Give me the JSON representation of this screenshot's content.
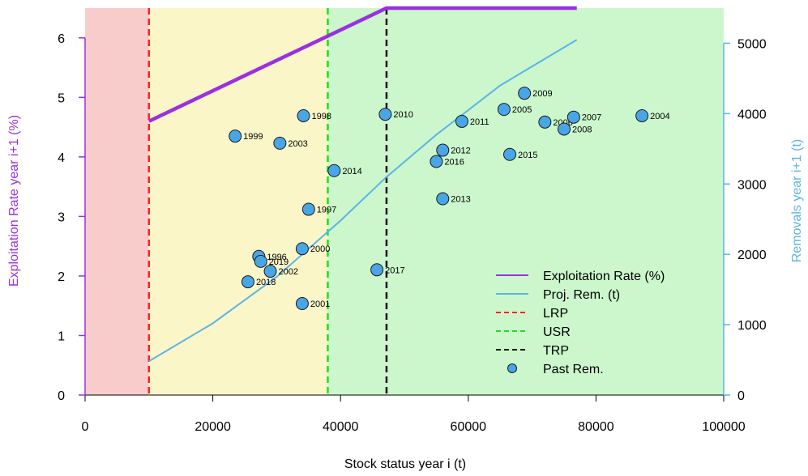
{
  "chart_data": {
    "type": "scatter",
    "xlabel": "Stock status year i (t)",
    "ylabel_left": "Exploitation Rate year i+1 (%)",
    "ylabel_right": "Removals year i+1 (t)",
    "xlim": [
      0,
      100000
    ],
    "ylim_left": [
      0,
      6.5
    ],
    "ylim_right": [
      0,
      5500
    ],
    "x_ticks": [
      "0",
      "20000",
      "40000",
      "60000",
      "80000",
      "100000"
    ],
    "y_left_ticks": [
      "0",
      "1",
      "2",
      "3",
      "4",
      "5",
      "6"
    ],
    "y_right_ticks": [
      "0",
      "1000",
      "2000",
      "3000",
      "4000",
      "5000"
    ],
    "zones": [
      {
        "from": 0,
        "to": 10000,
        "color": "#f9cccc"
      },
      {
        "from": 10000,
        "to": 38000,
        "color": "#fbf6c8"
      },
      {
        "from": 38000,
        "to": 100000,
        "color": "#ccf7cc"
      }
    ],
    "reference_lines": [
      {
        "name": "LRP",
        "x": 10000,
        "color": "#ff2020"
      },
      {
        "name": "USR",
        "x": 38000,
        "color": "#22dd22"
      },
      {
        "name": "TRP",
        "x": 47200,
        "color": "#111111"
      }
    ],
    "exploitation_rate": {
      "name": "Exploitation Rate (%)",
      "color": "#9b30e0",
      "x": [
        10000,
        47200,
        77000
      ],
      "y": [
        4.6,
        6.5,
        6.5
      ]
    },
    "projected_removals": {
      "name": "Proj. Rem. (t)",
      "color": "#5ab4e8",
      "x": [
        10000,
        20000,
        30000,
        40000,
        47200,
        55000,
        65000,
        77000
      ],
      "y": [
        480,
        1020,
        1680,
        2480,
        3100,
        3700,
        4400,
        5050
      ]
    },
    "past_removals": {
      "name": "Past Rem.",
      "color": "#49a6e6",
      "points": [
        {
          "year": "1996",
          "x": 27200,
          "y": 1970
        },
        {
          "year": "1997",
          "x": 35000,
          "y": 2640
        },
        {
          "year": "1998",
          "x": 34200,
          "y": 3970
        },
        {
          "year": "1999",
          "x": 23500,
          "y": 3680
        },
        {
          "year": "2000",
          "x": 34000,
          "y": 2080
        },
        {
          "year": "2001",
          "x": 34000,
          "y": 1300
        },
        {
          "year": "2002",
          "x": 29000,
          "y": 1760
        },
        {
          "year": "2003",
          "x": 30500,
          "y": 3580
        },
        {
          "year": "2004",
          "x": 87200,
          "y": 3970
        },
        {
          "year": "2005",
          "x": 65600,
          "y": 4060
        },
        {
          "year": "2006",
          "x": 72000,
          "y": 3880
        },
        {
          "year": "2007",
          "x": 76500,
          "y": 3950
        },
        {
          "year": "2008",
          "x": 75000,
          "y": 3780
        },
        {
          "year": "2009",
          "x": 68800,
          "y": 4290
        },
        {
          "year": "2010",
          "x": 47000,
          "y": 3990
        },
        {
          "year": "2011",
          "x": 59000,
          "y": 3890
        },
        {
          "year": "2012",
          "x": 56000,
          "y": 3480
        },
        {
          "year": "2013",
          "x": 56000,
          "y": 2790
        },
        {
          "year": "2014",
          "x": 39000,
          "y": 3190
        },
        {
          "year": "2015",
          "x": 66500,
          "y": 3420
        },
        {
          "year": "2016",
          "x": 55000,
          "y": 3320
        },
        {
          "year": "2017",
          "x": 45700,
          "y": 1780
        },
        {
          "year": "2018",
          "x": 25500,
          "y": 1610
        },
        {
          "year": "2019",
          "x": 27500,
          "y": 1900
        }
      ]
    },
    "legend": {
      "position": "bottom-right",
      "entries": [
        {
          "label": "Exploitation Rate (%)",
          "style": "line",
          "color": "#9b30e0"
        },
        {
          "label": "Proj. Rem. (t)",
          "style": "line",
          "color": "#5ab4e8"
        },
        {
          "label": "LRP",
          "style": "dashed",
          "color": "#ff2020"
        },
        {
          "label": "USR",
          "style": "dashed",
          "color": "#22dd22"
        },
        {
          "label": "TRP",
          "style": "dashed",
          "color": "#111111"
        },
        {
          "label": "Past Rem.",
          "style": "point",
          "color": "#49a6e6"
        }
      ]
    },
    "axis_colors": {
      "left": "#9b30e0",
      "right": "#5ab4e8",
      "bottom": "#000000"
    }
  }
}
